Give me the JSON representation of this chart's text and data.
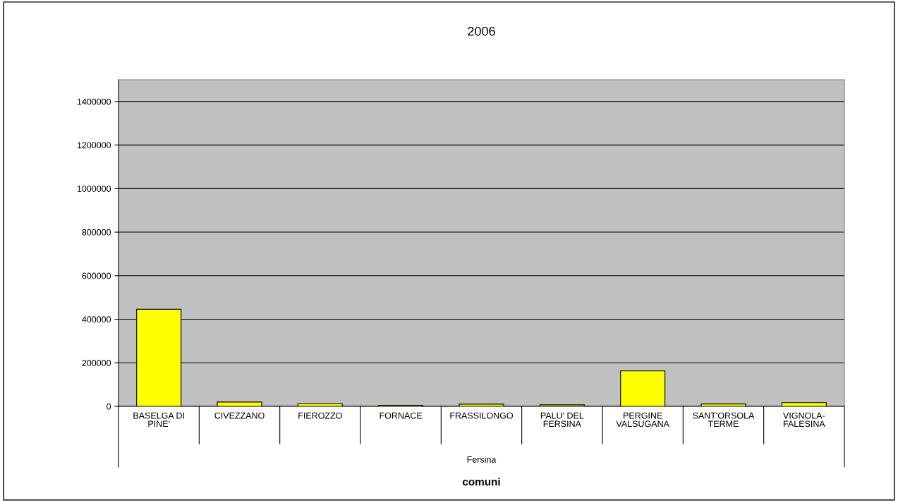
{
  "chart_data": {
    "type": "bar",
    "title": "2006",
    "xlabel": "comuni",
    "categories": [
      "BASELGA DI\nPINE'",
      "CIVEZZANO",
      "FIEROZZO",
      "FORNACE",
      "FRASSILONGO",
      "PALU' DEL\nFERSINA",
      "PERGINE\nVALSUGANA",
      "SANT'ORSOLA\nTERME",
      "VIGNOLA-\nFALESINA"
    ],
    "values": [
      446000,
      20000,
      12000,
      5000,
      10000,
      7000,
      163000,
      11000,
      17000
    ],
    "color": "#ffff00",
    "ylim": [
      0,
      1500000
    ],
    "yticks": [
      0,
      200000,
      400000,
      600000,
      800000,
      1000000,
      1200000,
      1400000
    ],
    "grid": "y",
    "annotations": [
      "Fersina"
    ]
  }
}
